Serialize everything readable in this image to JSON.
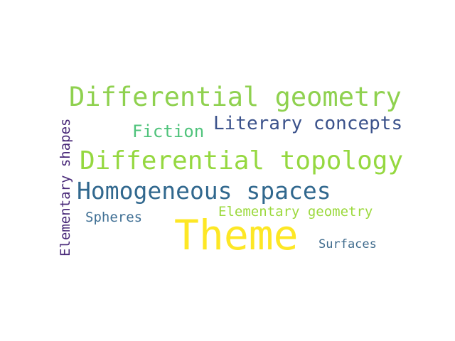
{
  "wordcloud": {
    "words": [
      {
        "text": "Differential geometry",
        "color": "#8fd14f"
      },
      {
        "text": "Fiction",
        "color": "#4fc37b"
      },
      {
        "text": "Literary concepts",
        "color": "#3b528b"
      },
      {
        "text": "Differential topology",
        "color": "#95d840"
      },
      {
        "text": "Homogeneous spaces",
        "color": "#31688e"
      },
      {
        "text": "Elementary geometry",
        "color": "#9bd93c"
      },
      {
        "text": "Spheres",
        "color": "#3f6f94"
      },
      {
        "text": "Theme",
        "color": "#fde725"
      },
      {
        "text": "Surfaces",
        "color": "#3e6a8c"
      },
      {
        "text": "Elementary shapes",
        "color": "#482878"
      }
    ]
  }
}
